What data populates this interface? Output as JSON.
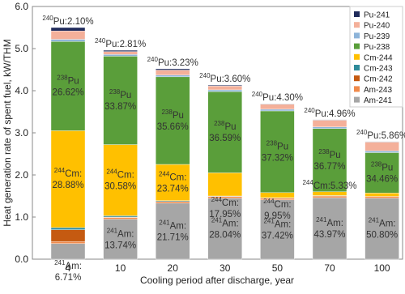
{
  "chart_data": {
    "type": "stacked-bar",
    "xlabel": "Cooling period after discharge, year",
    "ylabel": "Heat generation rate of spent fuel, kW/THM",
    "categories": [
      "4",
      "10",
      "20",
      "30",
      "50",
      "70",
      "100"
    ],
    "ylim": [
      0,
      6
    ],
    "yticks": [
      {
        "value": 0,
        "label": "0.0"
      },
      {
        "value": 1,
        "label": "1.0"
      },
      {
        "value": 2,
        "label": "2.0"
      },
      {
        "value": 3,
        "label": "3.0"
      },
      {
        "value": 4,
        "label": "4.0"
      },
      {
        "value": 5,
        "label": "5.0"
      },
      {
        "value": 6,
        "label": "6.0"
      }
    ],
    "legend": "top-right",
    "series": [
      {
        "name": "Am-241",
        "color": "#a6a6a6",
        "values": [
          0.37,
          0.95,
          1.33,
          1.45,
          1.41,
          1.46,
          1.45
        ]
      },
      {
        "name": "Am-243",
        "color": "#f08a4b",
        "values": [
          0.05,
          0.04,
          0.04,
          0.04,
          0.04,
          0.04,
          0.04
        ]
      },
      {
        "name": "Cm-242",
        "color": "#c55a11",
        "values": [
          0.28,
          0.01,
          0,
          0,
          0,
          0,
          0
        ]
      },
      {
        "name": "Cm-243",
        "color": "#2e8b9a",
        "values": [
          0.05,
          0.03,
          0.02,
          0.01,
          0.01,
          0.01,
          0
        ]
      },
      {
        "name": "Cm-244",
        "color": "#ffc000",
        "values": [
          2.3,
          1.69,
          0.86,
          0.55,
          0.12,
          0.09,
          0.08
        ]
      },
      {
        "name": "Pu-238",
        "color": "#5a9e3a",
        "values": [
          2.12,
          2.1,
          2.08,
          1.93,
          1.94,
          1.5,
          0.96
        ]
      },
      {
        "name": "Pu-239",
        "color": "#8db4d9",
        "values": [
          0.05,
          0.04,
          0.04,
          0.04,
          0.04,
          0.04,
          0.04
        ]
      },
      {
        "name": "Pu-240",
        "color": "#f4b09a",
        "values": [
          0.2,
          0.07,
          0.12,
          0.09,
          0.12,
          0.16,
          0.21
        ]
      },
      {
        "name": "Pu-241",
        "color": "#1f2a5a",
        "values": [
          0.08,
          0.03,
          0.03,
          0.02,
          0.01,
          0.01,
          0.01
        ]
      }
    ],
    "annotations": {
      "Pu-240": [
        {
          "mass": "240",
          "lines": [
            "Pu:2.10%"
          ]
        },
        {
          "mass": "240",
          "lines": [
            "Pu:2.81%"
          ]
        },
        {
          "mass": "240",
          "lines": [
            "Pu:3.23%"
          ]
        },
        {
          "mass": "240",
          "lines": [
            "Pu:3.60%"
          ]
        },
        {
          "mass": "240",
          "lines": [
            "Pu:4.30%"
          ]
        },
        {
          "mass": "240",
          "lines": [
            "Pu:4.96%"
          ]
        },
        {
          "mass": "240",
          "lines": [
            "Pu:5.86%"
          ]
        }
      ],
      "Pu-238": [
        {
          "mass": "238",
          "lines": [
            "Pu",
            "26.62%"
          ]
        },
        {
          "mass": "238",
          "lines": [
            "Pu",
            "33.87%"
          ]
        },
        {
          "mass": "238",
          "lines": [
            "Pu",
            "35.66%"
          ]
        },
        {
          "mass": "238",
          "lines": [
            "Pu",
            "36.59%"
          ]
        },
        {
          "mass": "238",
          "lines": [
            "Pu",
            "37.32%"
          ]
        },
        {
          "mass": "238",
          "lines": [
            "Pu",
            "36.77%"
          ]
        },
        {
          "mass": "238",
          "lines": [
            "Pu",
            "34.46%"
          ]
        }
      ],
      "Cm-244": [
        {
          "mass": "244",
          "lines": [
            "Cm:",
            "28.88%"
          ]
        },
        {
          "mass": "244",
          "lines": [
            "Cm:",
            "30.58%"
          ]
        },
        {
          "mass": "244",
          "lines": [
            "Cm:",
            "23.74%"
          ]
        },
        {
          "mass": "244",
          "lines": [
            "Cm:",
            "17.95%"
          ]
        },
        {
          "mass": "244",
          "lines": [
            "Cm:",
            "9.95%"
          ]
        },
        {
          "mass": "244",
          "lines": [
            "Cm:5.33%"
          ]
        },
        null
      ],
      "Am-241": [
        {
          "mass": "241",
          "lines": [
            "Am:",
            "6.71%"
          ]
        },
        {
          "mass": "241",
          "lines": [
            "Am:",
            "13.74%"
          ]
        },
        {
          "mass": "241",
          "lines": [
            "Am:",
            "21.71%"
          ]
        },
        {
          "mass": "241",
          "lines": [
            "Am:",
            "28.04%"
          ]
        },
        {
          "mass": "241",
          "lines": [
            "Am:",
            "37.42%"
          ]
        },
        {
          "mass": "241",
          "lines": [
            "Am:",
            "43.97%"
          ]
        },
        {
          "mass": "241",
          "lines": [
            "Am:",
            "50.80%"
          ]
        }
      ]
    }
  }
}
